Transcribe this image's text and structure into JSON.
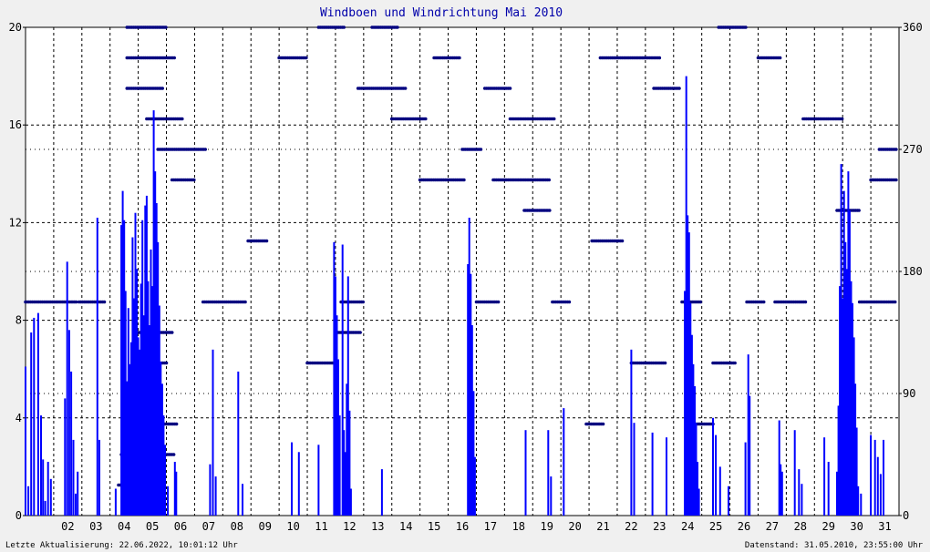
{
  "chart_data": {
    "type": "bar",
    "title": "Windboen und Windrichtung Mai 2010",
    "x_ticks": [
      "02",
      "03",
      "04",
      "05",
      "06",
      "07",
      "08",
      "09",
      "10",
      "11",
      "12",
      "13",
      "14",
      "15",
      "16",
      "17",
      "18",
      "19",
      "20",
      "21",
      "22",
      "23",
      "24",
      "25",
      "26",
      "27",
      "28",
      "29",
      "30",
      "31"
    ],
    "x_range_days": [
      1,
      32
    ],
    "y_left": {
      "label": "",
      "min": 0,
      "max": 20,
      "ticks": [
        0,
        4,
        8,
        12,
        16,
        20
      ]
    },
    "y_right": {
      "label": "",
      "min": 0,
      "max": 360,
      "ticks": [
        0,
        90,
        180,
        270,
        360
      ]
    },
    "grid": true,
    "series": [
      {
        "kind": "gust_bars",
        "color": "#0000ff",
        "x": [
          1.0,
          1.1,
          1.2,
          1.3,
          1.45,
          1.55,
          1.62,
          1.7,
          1.8,
          1.9,
          2.4,
          2.48,
          2.55,
          2.62,
          2.7,
          2.78,
          2.85,
          3.55,
          3.62,
          4.2,
          4.4,
          4.45,
          4.5,
          4.55,
          4.6,
          4.65,
          4.7,
          4.75,
          4.8,
          4.85,
          4.9,
          4.95,
          5.0,
          5.05,
          5.1,
          5.15,
          5.2,
          5.25,
          5.3,
          5.35,
          5.4,
          5.45,
          5.5,
          5.55,
          5.6,
          5.65,
          5.7,
          5.75,
          5.8,
          5.85,
          5.9,
          5.95,
          6.05,
          6.3,
          6.35,
          7.55,
          7.65,
          7.75,
          8.55,
          8.7,
          10.45,
          10.7,
          11.4,
          11.95,
          12.0,
          12.05,
          12.1,
          12.15,
          12.25,
          12.3,
          12.35,
          12.4,
          12.45,
          12.5,
          12.55,
          13.65,
          16.7,
          16.75,
          16.8,
          16.85,
          16.9,
          16.95,
          18.75,
          19.55,
          19.65,
          20.1,
          22.5,
          22.6,
          23.25,
          23.75,
          24.4,
          24.45,
          24.5,
          24.55,
          24.6,
          24.65,
          24.7,
          24.75,
          24.8,
          24.85,
          24.9,
          25.4,
          25.5,
          25.65,
          25.95,
          26.55,
          26.65,
          26.7,
          27.75,
          27.8,
          27.85,
          28.3,
          28.45,
          28.55,
          29.35,
          29.5,
          29.8,
          29.85,
          29.9,
          29.95,
          30.0,
          30.05,
          30.1,
          30.15,
          30.2,
          30.25,
          30.3,
          30.35,
          30.4,
          30.45,
          30.5,
          30.55,
          30.65,
          31.0,
          31.15,
          31.25,
          31.35,
          31.45
        ],
        "values": [
          6.1,
          1.2,
          7.5,
          8.1,
          8.3,
          4.1,
          2.3,
          0.6,
          2.2,
          1.5,
          4.8,
          10.4,
          7.6,
          5.9,
          3.1,
          0.9,
          1.8,
          12.2,
          3.1,
          1.1,
          11.9,
          13.3,
          12.1,
          9.2,
          5.5,
          8.5,
          6.2,
          7.1,
          11.4,
          8.9,
          12.4,
          10.1,
          7.3,
          6.8,
          9.5,
          12.1,
          8.2,
          12.7,
          13.1,
          9.6,
          7.8,
          10.9,
          9.4,
          16.6,
          14.1,
          12.8,
          11.2,
          8.6,
          6.3,
          5.4,
          4.1,
          2.9,
          1.2,
          2.2,
          1.8,
          2.1,
          6.8,
          1.6,
          5.9,
          1.3,
          3.0,
          2.6,
          2.9,
          11.2,
          9.8,
          8.2,
          6.4,
          4.1,
          11.1,
          3.5,
          2.6,
          5.4,
          9.8,
          4.3,
          1.1,
          1.9,
          10.3,
          12.2,
          9.9,
          7.8,
          5.1,
          2.4,
          3.5,
          3.5,
          1.6,
          4.4,
          6.8,
          3.8,
          3.4,
          3.2,
          9.2,
          18.0,
          12.3,
          11.6,
          8.7,
          7.4,
          6.2,
          5.3,
          3.8,
          2.2,
          1.1,
          4.0,
          3.3,
          2.0,
          1.2,
          3.0,
          6.6,
          4.9,
          3.9,
          2.1,
          1.8,
          3.5,
          1.9,
          1.3,
          3.2,
          2.2,
          1.8,
          4.5,
          9.4,
          14.4,
          8.9,
          13.3,
          11.2,
          10.1,
          14.1,
          12.5,
          9.6,
          8.7,
          7.3,
          5.4,
          3.6,
          1.2,
          0.9,
          3.3,
          3.1,
          2.4,
          1.7,
          3.1
        ]
      },
      {
        "kind": "direction_dots",
        "color": "#000080",
        "axis": "right",
        "segments": [
          [
            1.0,
            2.8,
            157.5
          ],
          [
            2.9,
            3.8,
            157.5
          ],
          [
            4.3,
            4.6,
            22.5
          ],
          [
            4.4,
            6.3,
            45
          ],
          [
            4.5,
            6.4,
            67.5
          ],
          [
            4.8,
            6.0,
            112.5
          ],
          [
            5.0,
            6.2,
            135
          ],
          [
            4.6,
            5.8,
            90
          ],
          [
            4.6,
            6.0,
            360
          ],
          [
            4.6,
            6.3,
            337.5
          ],
          [
            4.6,
            5.9,
            315
          ],
          [
            5.3,
            6.6,
            292.5
          ],
          [
            5.7,
            7.4,
            270
          ],
          [
            6.2,
            7.0,
            247.5
          ],
          [
            7.3,
            8.8,
            157.5
          ],
          [
            8.9,
            9.6,
            202.5
          ],
          [
            10.0,
            11.0,
            337.5
          ],
          [
            11.0,
            12.0,
            112.5
          ],
          [
            11.4,
            12.3,
            360
          ],
          [
            12.1,
            12.9,
            135
          ],
          [
            12.2,
            13.0,
            157.5
          ],
          [
            12.8,
            14.5,
            315
          ],
          [
            13.3,
            14.2,
            360
          ],
          [
            14.0,
            15.2,
            292.5
          ],
          [
            15.0,
            16.6,
            247.5
          ],
          [
            15.5,
            16.4,
            337.5
          ],
          [
            16.5,
            17.2,
            270
          ],
          [
            17.0,
            17.8,
            157.5
          ],
          [
            17.3,
            18.2,
            315
          ],
          [
            17.6,
            19.6,
            247.5
          ],
          [
            18.2,
            19.8,
            292.5
          ],
          [
            18.7,
            19.6,
            225
          ],
          [
            19.7,
            20.3,
            157.5
          ],
          [
            20.9,
            21.5,
            67.5
          ],
          [
            21.1,
            22.2,
            202.5
          ],
          [
            21.4,
            23.5,
            337.5
          ],
          [
            22.5,
            23.7,
            112.5
          ],
          [
            23.3,
            24.2,
            315
          ],
          [
            24.3,
            25.0,
            157.5
          ],
          [
            24.8,
            25.4,
            67.5
          ],
          [
            25.4,
            26.2,
            112.5
          ],
          [
            25.6,
            26.6,
            360
          ],
          [
            26.6,
            27.2,
            157.5
          ],
          [
            27.0,
            27.8,
            337.5
          ],
          [
            27.6,
            28.7,
            157.5
          ],
          [
            28.6,
            30.0,
            292.5
          ],
          [
            29.8,
            30.6,
            225
          ],
          [
            30.6,
            31.9,
            157.5
          ],
          [
            31.0,
            31.9,
            247.5
          ],
          [
            31.3,
            31.9,
            270
          ]
        ]
      }
    ],
    "footer_left": "Letzte Aktualisierung: 22.06.2022, 10:01:12 Uhr",
    "footer_right": "Datenstand: 31.05.2010, 23:55:00 Uhr"
  }
}
